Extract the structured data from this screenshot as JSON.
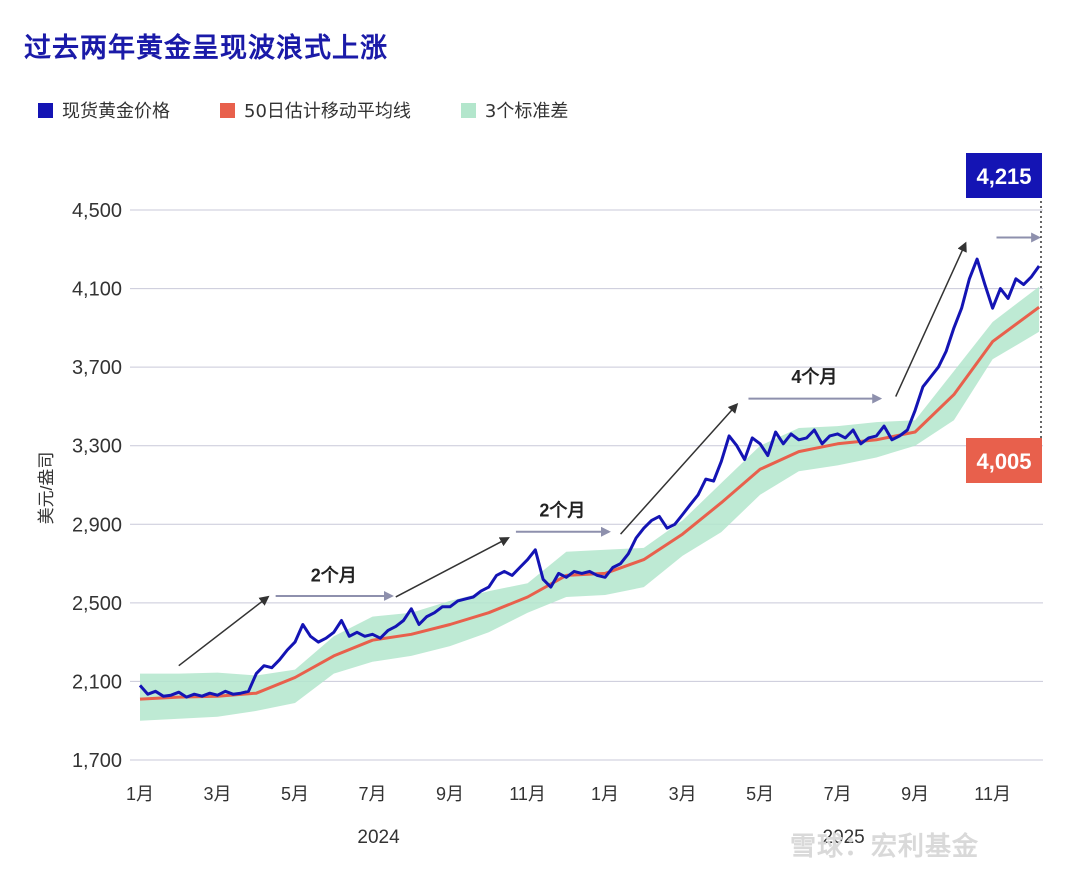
{
  "title": "过去两年黄金呈现波浪式上涨",
  "legend": [
    {
      "label": "现货黄金价格",
      "color": "#1414b4"
    },
    {
      "label": "50日估计移动平均线",
      "color": "#e8604c"
    },
    {
      "label": "3个标准差",
      "color": "#b3e6cc"
    }
  ],
  "watermark": "雪球：宏利基金",
  "chart_data": {
    "type": "line",
    "title": "过去两年黄金呈现波浪式上涨",
    "ylabel": "美元/盎司",
    "xlabel": "",
    "ylim": [
      1700,
      4600
    ],
    "yticks": [
      1700,
      2100,
      2500,
      2900,
      3300,
      3700,
      4100,
      4500
    ],
    "ytick_labels": [
      "1,700",
      "2,100",
      "2,500",
      "2,900",
      "3,300",
      "3,700",
      "4,100",
      "4,500"
    ],
    "xlim": [
      0,
      23.3
    ],
    "xticks": [
      0,
      2,
      4,
      6,
      8,
      10,
      12,
      14,
      16,
      18,
      20,
      22
    ],
    "xtick_labels": [
      "1月",
      "3月",
      "5月",
      "7月",
      "9月",
      "11月",
      "1月",
      "3月",
      "5月",
      "7月",
      "9月",
      "11月"
    ],
    "year_labels": [
      {
        "x": 6,
        "label": "2024"
      },
      {
        "x": 18,
        "label": "2025"
      }
    ],
    "series": [
      {
        "name": "现货黄金价格",
        "color": "#1414b4",
        "x": [
          0,
          0.2,
          0.4,
          0.6,
          0.8,
          1.0,
          1.2,
          1.4,
          1.6,
          1.8,
          2.0,
          2.2,
          2.4,
          2.6,
          2.8,
          3.0,
          3.2,
          3.4,
          3.6,
          3.8,
          4.0,
          4.2,
          4.4,
          4.6,
          4.8,
          5.0,
          5.2,
          5.4,
          5.6,
          5.8,
          6.0,
          6.2,
          6.4,
          6.6,
          6.8,
          7.0,
          7.2,
          7.4,
          7.6,
          7.8,
          8.0,
          8.2,
          8.4,
          8.6,
          8.8,
          9.0,
          9.2,
          9.4,
          9.6,
          9.8,
          10.0,
          10.2,
          10.4,
          10.6,
          10.8,
          11.0,
          11.2,
          11.4,
          11.6,
          11.8,
          12.0,
          12.2,
          12.4,
          12.6,
          12.8,
          13.0,
          13.2,
          13.4,
          13.6,
          13.8,
          14.0,
          14.2,
          14.4,
          14.6,
          14.8,
          15.0,
          15.2,
          15.4,
          15.6,
          15.8,
          16.0,
          16.2,
          16.4,
          16.6,
          16.8,
          17.0,
          17.2,
          17.4,
          17.6,
          17.8,
          18.0,
          18.2,
          18.4,
          18.6,
          18.8,
          19.0,
          19.2,
          19.4,
          19.6,
          19.8,
          20.0,
          20.2,
          20.4,
          20.6,
          20.8,
          21.0,
          21.2,
          21.4,
          21.6,
          21.8,
          22.0,
          22.2,
          22.4,
          22.6,
          22.8,
          23.0,
          23.2
        ],
        "values": [
          2080,
          2035,
          2050,
          2025,
          2030,
          2045,
          2020,
          2035,
          2025,
          2040,
          2030,
          2050,
          2035,
          2040,
          2050,
          2140,
          2180,
          2170,
          2210,
          2260,
          2300,
          2390,
          2330,
          2300,
          2320,
          2350,
          2410,
          2330,
          2350,
          2330,
          2340,
          2320,
          2360,
          2380,
          2410,
          2470,
          2390,
          2430,
          2450,
          2480,
          2480,
          2510,
          2520,
          2530,
          2560,
          2580,
          2640,
          2660,
          2640,
          2680,
          2720,
          2770,
          2620,
          2580,
          2650,
          2630,
          2660,
          2650,
          2660,
          2640,
          2630,
          2680,
          2700,
          2750,
          2830,
          2880,
          2920,
          2940,
          2880,
          2900,
          2950,
          3000,
          3050,
          3130,
          3120,
          3220,
          3350,
          3300,
          3230,
          3340,
          3310,
          3250,
          3370,
          3310,
          3360,
          3330,
          3340,
          3380,
          3310,
          3350,
          3360,
          3340,
          3380,
          3310,
          3340,
          3350,
          3400,
          3330,
          3350,
          3380,
          3480,
          3600,
          3650,
          3700,
          3780,
          3900,
          4000,
          4150,
          4250,
          4120,
          4000,
          4100,
          4050,
          4150,
          4120,
          4160,
          4215
        ]
      },
      {
        "name": "50日估计移动平均线",
        "color": "#e8604c",
        "x": [
          0,
          1,
          2,
          3,
          4,
          5,
          6,
          7,
          8,
          9,
          10,
          11,
          12,
          13,
          14,
          15,
          16,
          17,
          18,
          19,
          20,
          21,
          22,
          23.2
        ],
        "values": [
          2010,
          2020,
          2025,
          2040,
          2120,
          2230,
          2310,
          2340,
          2390,
          2450,
          2530,
          2640,
          2650,
          2720,
          2850,
          3010,
          3180,
          3270,
          3310,
          3330,
          3370,
          3560,
          3830,
          4005
        ]
      },
      {
        "name": "3个标准差",
        "color": "#b3e6cc",
        "x": [
          0,
          1,
          2,
          3,
          4,
          5,
          6,
          7,
          8,
          9,
          10,
          11,
          12,
          13,
          14,
          15,
          16,
          17,
          18,
          19,
          20,
          21,
          22,
          23.2
        ],
        "upper": [
          2140,
          2140,
          2145,
          2130,
          2160,
          2330,
          2430,
          2450,
          2510,
          2560,
          2600,
          2760,
          2770,
          2780,
          2920,
          3110,
          3300,
          3390,
          3400,
          3420,
          3430,
          3680,
          3930,
          4110
        ],
        "lower": [
          1900,
          1910,
          1920,
          1950,
          1990,
          2140,
          2200,
          2230,
          2280,
          2350,
          2450,
          2530,
          2540,
          2580,
          2740,
          2860,
          3050,
          3170,
          3200,
          3240,
          3300,
          3430,
          3740,
          3880
        ]
      }
    ],
    "annotations": [
      {
        "type": "arrow",
        "from": [
          1.0,
          2180
        ],
        "to": [
          3.3,
          2530
        ]
      },
      {
        "type": "arrow",
        "from": [
          3.5,
          2535
        ],
        "to": [
          6.5,
          2535
        ],
        "muted": true
      },
      {
        "type": "label",
        "x": 5.0,
        "y": 2610,
        "text": "2个月"
      },
      {
        "type": "arrow",
        "from": [
          6.6,
          2530
        ],
        "to": [
          9.5,
          2830
        ]
      },
      {
        "type": "arrow",
        "from": [
          9.7,
          2862
        ],
        "to": [
          12.1,
          2862
        ],
        "muted": true
      },
      {
        "type": "label",
        "x": 10.9,
        "y": 2940,
        "text": "2个月"
      },
      {
        "type": "arrow",
        "from": [
          12.4,
          2850
        ],
        "to": [
          15.4,
          3510
        ]
      },
      {
        "type": "arrow",
        "from": [
          15.7,
          3540
        ],
        "to": [
          19.1,
          3540
        ],
        "muted": true
      },
      {
        "type": "label",
        "x": 17.4,
        "y": 3620,
        "text": "4个月"
      },
      {
        "type": "arrow",
        "from": [
          19.5,
          3550
        ],
        "to": [
          21.3,
          4330
        ]
      },
      {
        "type": "arrow",
        "from": [
          22.1,
          4360
        ],
        "to": [
          23.2,
          4360
        ],
        "muted": true
      }
    ],
    "end_labels": [
      {
        "series": "现货黄金价格",
        "text": "4,215",
        "color": "#1414b4"
      },
      {
        "series": "50日估计移动平均线",
        "text": "4,005",
        "color": "#e8604c"
      }
    ]
  }
}
